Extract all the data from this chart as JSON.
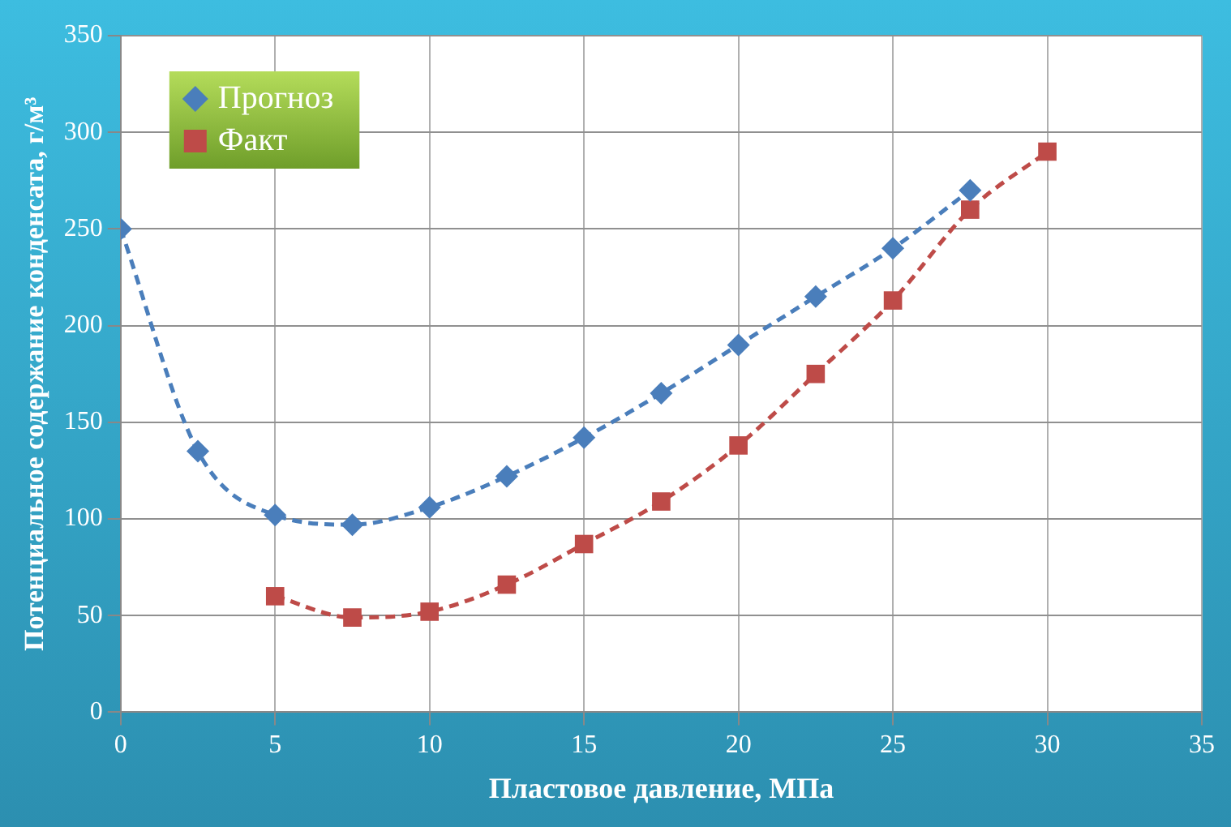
{
  "chart_data": {
    "type": "line",
    "xlabel": "Пластовое давление, МПа",
    "ylabel": "Потенциальное содержание конденсата, г/м³",
    "xlim": [
      0,
      35
    ],
    "xticks": [
      0,
      5,
      10,
      15,
      20,
      25,
      30,
      35
    ],
    "ylim": [
      0,
      350
    ],
    "yticks": [
      0,
      50,
      100,
      150,
      200,
      250,
      300,
      350
    ],
    "grid": true,
    "legend": "top left",
    "line_style": "dashed",
    "series": [
      {
        "name": "Прогноз",
        "color": "#4a7ebb",
        "marker": "diamond",
        "x": [
          0,
          2.5,
          5,
          7.5,
          10,
          12.5,
          15,
          17.5,
          20,
          22.5,
          25,
          27.5
        ],
        "values": [
          250,
          135,
          102,
          97,
          106,
          122,
          142,
          165,
          190,
          215,
          240,
          270
        ]
      },
      {
        "name": "Факт",
        "color": "#be4b48",
        "marker": "square",
        "x": [
          5,
          7.5,
          10,
          12.5,
          15,
          17.5,
          20,
          22.5,
          25,
          27.5,
          30
        ],
        "values": [
          60,
          49,
          52,
          66,
          87,
          109,
          138,
          175,
          213,
          260,
          290
        ]
      }
    ]
  }
}
